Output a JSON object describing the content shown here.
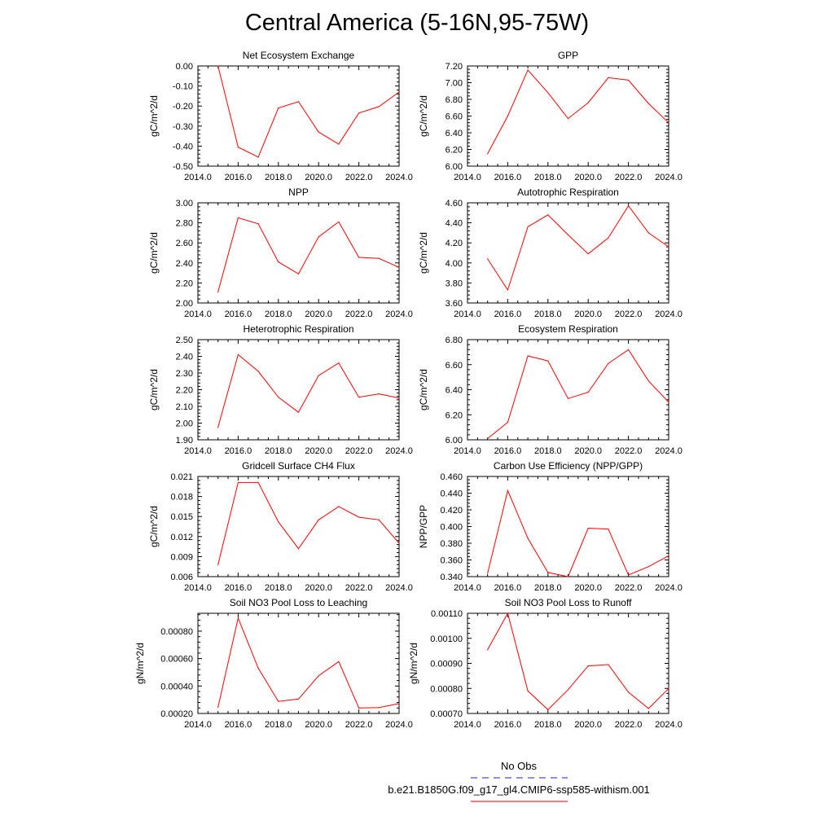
{
  "title": "Central America (5-16N,95-75W)",
  "legend": {
    "entries": [
      {
        "label": "No Obs",
        "color": "#4a4ad0",
        "dash": true
      },
      {
        "label": "b.e21.B1850G.f09_g17_gl4.CMIP6-ssp585-withism.001",
        "color": "#e8302f",
        "dash": false
      }
    ]
  },
  "colors": {
    "series": "#ff0000"
  },
  "chart_data": [
    {
      "type": "line",
      "title": "Net Ecosystem Exchange",
      "ylabel": "gC/m^2/d",
      "xlim": [
        2014,
        2024
      ],
      "ylim": [
        -0.5,
        0.0
      ],
      "xticks": [
        2014,
        2016,
        2018,
        2020,
        2022,
        2024
      ],
      "xtick_labels": [
        "2014.0",
        "2016.0",
        "2018.0",
        "2020.0",
        "2022.0",
        "2024.0"
      ],
      "yticks": [
        -0.5,
        -0.4,
        -0.3,
        -0.2,
        -0.1,
        0.0
      ],
      "ytick_labels": [
        "-0.50",
        "-0.40",
        "-0.30",
        "-0.20",
        "-0.10",
        "0.00"
      ],
      "x": [
        2015,
        2016,
        2017,
        2018,
        2019,
        2020,
        2021,
        2022,
        2023,
        2024
      ],
      "y": [
        0.0,
        -0.405,
        -0.455,
        -0.21,
        -0.178,
        -0.33,
        -0.39,
        -0.235,
        -0.203,
        -0.13
      ]
    },
    {
      "type": "line",
      "title": "GPP",
      "ylabel": "gC/m^2/d",
      "xlim": [
        2014,
        2024
      ],
      "ylim": [
        6.0,
        7.2
      ],
      "xticks": [
        2014,
        2016,
        2018,
        2020,
        2022,
        2024
      ],
      "xtick_labels": [
        "2014.0",
        "2016.0",
        "2018.0",
        "2020.0",
        "2022.0",
        "2024.0"
      ],
      "yticks": [
        6.0,
        6.2,
        6.4,
        6.6,
        6.8,
        7.0,
        7.2
      ],
      "ytick_labels": [
        "6.00",
        "6.20",
        "6.40",
        "6.60",
        "6.80",
        "7.00",
        "7.20"
      ],
      "x": [
        2015,
        2016,
        2017,
        2018,
        2019,
        2020,
        2021,
        2022,
        2023,
        2024
      ],
      "y": [
        6.15,
        6.6,
        7.15,
        6.88,
        6.57,
        6.76,
        7.06,
        7.03,
        6.75,
        6.52
      ]
    },
    {
      "type": "line",
      "title": "NPP",
      "ylabel": "gC/m^2/d",
      "xlim": [
        2014,
        2024
      ],
      "ylim": [
        2.0,
        3.0
      ],
      "xticks": [
        2014,
        2016,
        2018,
        2020,
        2022,
        2024
      ],
      "xtick_labels": [
        "2014.0",
        "2016.0",
        "2018.0",
        "2020.0",
        "2022.0",
        "2024.0"
      ],
      "yticks": [
        2.0,
        2.2,
        2.4,
        2.6,
        2.8,
        3.0
      ],
      "ytick_labels": [
        "2.00",
        "2.20",
        "2.40",
        "2.60",
        "2.80",
        "3.00"
      ],
      "x": [
        2015,
        2016,
        2017,
        2018,
        2019,
        2020,
        2021,
        2022,
        2023,
        2024
      ],
      "y": [
        2.11,
        2.85,
        2.79,
        2.41,
        2.29,
        2.66,
        2.81,
        2.455,
        2.445,
        2.355
      ]
    },
    {
      "type": "line",
      "title": "Autotrophic Respiration",
      "ylabel": "gC/m^2/d",
      "xlim": [
        2014,
        2024
      ],
      "ylim": [
        3.6,
        4.6
      ],
      "xticks": [
        2014,
        2016,
        2018,
        2020,
        2022,
        2024
      ],
      "xtick_labels": [
        "2014.0",
        "2016.0",
        "2018.0",
        "2020.0",
        "2022.0",
        "2024.0"
      ],
      "yticks": [
        3.6,
        3.8,
        4.0,
        4.2,
        4.4,
        4.6
      ],
      "ytick_labels": [
        "3.60",
        "3.80",
        "4.00",
        "4.20",
        "4.40",
        "4.60"
      ],
      "x": [
        2015,
        2016,
        2017,
        2018,
        2019,
        2020,
        2021,
        2022,
        2023,
        2024
      ],
      "y": [
        4.04,
        3.73,
        4.36,
        4.48,
        4.28,
        4.09,
        4.25,
        4.57,
        4.3,
        4.16
      ]
    },
    {
      "type": "line",
      "title": "Heterotrophic Respiration",
      "ylabel": "gC/m^2/d",
      "xlim": [
        2014,
        2024
      ],
      "ylim": [
        1.9,
        2.5
      ],
      "xticks": [
        2014,
        2016,
        2018,
        2020,
        2022,
        2024
      ],
      "xtick_labels": [
        "2014.0",
        "2016.0",
        "2018.0",
        "2020.0",
        "2022.0",
        "2024.0"
      ],
      "yticks": [
        1.9,
        2.0,
        2.1,
        2.2,
        2.3,
        2.4,
        2.5
      ],
      "ytick_labels": [
        "1.90",
        "2.00",
        "2.10",
        "2.20",
        "2.30",
        "2.40",
        "2.50"
      ],
      "x": [
        2015,
        2016,
        2017,
        2018,
        2019,
        2020,
        2021,
        2022,
        2023,
        2024
      ],
      "y": [
        1.975,
        2.41,
        2.31,
        2.155,
        2.065,
        2.285,
        2.36,
        2.155,
        2.175,
        2.15
      ]
    },
    {
      "type": "line",
      "title": "Ecosystem Respiration",
      "ylabel": "gC/m^2/d",
      "xlim": [
        2014,
        2024
      ],
      "ylim": [
        6.0,
        6.8
      ],
      "xticks": [
        2014,
        2016,
        2018,
        2020,
        2022,
        2024
      ],
      "xtick_labels": [
        "2014.0",
        "2016.0",
        "2018.0",
        "2020.0",
        "2022.0",
        "2024.0"
      ],
      "yticks": [
        6.0,
        6.2,
        6.4,
        6.6,
        6.8
      ],
      "ytick_labels": [
        "6.00",
        "6.20",
        "6.40",
        "6.60",
        "6.80"
      ],
      "x": [
        2015,
        2016,
        2017,
        2018,
        2019,
        2020,
        2021,
        2022,
        2023,
        2024
      ],
      "y": [
        6.01,
        6.14,
        6.67,
        6.63,
        6.33,
        6.38,
        6.61,
        6.72,
        6.47,
        6.3
      ]
    },
    {
      "type": "line",
      "title": "Gridcell Surface CH4 Flux",
      "ylabel": "gC/m^2/d",
      "xlim": [
        2014,
        2024
      ],
      "ylim": [
        0.006,
        0.021
      ],
      "xticks": [
        2014,
        2016,
        2018,
        2020,
        2022,
        2024
      ],
      "xtick_labels": [
        "2014.0",
        "2016.0",
        "2018.0",
        "2020.0",
        "2022.0",
        "2024.0"
      ],
      "yticks": [
        0.006,
        0.009,
        0.012,
        0.015,
        0.018,
        0.021
      ],
      "ytick_labels": [
        "0.006",
        "0.009",
        "0.012",
        "0.015",
        "0.018",
        "0.021"
      ],
      "x": [
        2015,
        2016,
        2017,
        2018,
        2019,
        2020,
        2021,
        2022,
        2023,
        2024
      ],
      "y": [
        0.0078,
        0.0201,
        0.0201,
        0.0142,
        0.0102,
        0.0145,
        0.0165,
        0.0149,
        0.0145,
        0.011
      ]
    },
    {
      "type": "line",
      "title": "Carbon Use Efficiency (NPP/GPP)",
      "ylabel": "NPP/GPP",
      "xlim": [
        2014,
        2024
      ],
      "ylim": [
        0.34,
        0.46
      ],
      "xticks": [
        2014,
        2016,
        2018,
        2020,
        2022,
        2024
      ],
      "xtick_labels": [
        "2014.0",
        "2016.0",
        "2018.0",
        "2020.0",
        "2022.0",
        "2024.0"
      ],
      "yticks": [
        0.34,
        0.36,
        0.38,
        0.4,
        0.42,
        0.44,
        0.46
      ],
      "ytick_labels": [
        "0.340",
        "0.360",
        "0.380",
        "0.400",
        "0.420",
        "0.440",
        "0.460"
      ],
      "x": [
        2015,
        2016,
        2017,
        2018,
        2019,
        2020,
        2021,
        2022,
        2023,
        2024
      ],
      "y": [
        0.344,
        0.443,
        0.386,
        0.345,
        0.34,
        0.398,
        0.397,
        0.342,
        0.352,
        0.365
      ]
    },
    {
      "type": "line",
      "title": "Soil NO3 Pool Loss to Leaching",
      "ylabel": "gN/m^2/d",
      "xlim": [
        2014,
        2024
      ],
      "ylim": [
        0.0002,
        0.00093
      ],
      "xticks": [
        2014,
        2016,
        2018,
        2020,
        2022,
        2024
      ],
      "xtick_labels": [
        "2014.0",
        "2016.0",
        "2018.0",
        "2020.0",
        "2022.0",
        "2024.0"
      ],
      "yticks": [
        0.0002,
        0.0004,
        0.0006,
        0.0008
      ],
      "ytick_labels": [
        "0.00020",
        "0.00040",
        "0.00060",
        "0.00080"
      ],
      "x": [
        2015,
        2016,
        2017,
        2018,
        2019,
        2020,
        2021,
        2022,
        2023,
        2024
      ],
      "y": [
        0.000245,
        0.000895,
        0.00053,
        0.000288,
        0.000305,
        0.000475,
        0.000578,
        0.00024,
        0.000243,
        0.000272
      ]
    },
    {
      "type": "line",
      "title": "Soil NO3 Pool Loss to Runoff",
      "ylabel": "gN/m^2/d",
      "xlim": [
        2014,
        2024
      ],
      "ylim": [
        0.0007,
        0.0011
      ],
      "xticks": [
        2014,
        2016,
        2018,
        2020,
        2022,
        2024
      ],
      "xtick_labels": [
        "2014.0",
        "2016.0",
        "2018.0",
        "2020.0",
        "2022.0",
        "2024.0"
      ],
      "yticks": [
        0.0007,
        0.0008,
        0.0009,
        0.001,
        0.0011
      ],
      "ytick_labels": [
        "0.00070",
        "0.00080",
        "0.00090",
        "0.00100",
        "0.00110"
      ],
      "x": [
        2015,
        2016,
        2017,
        2018,
        2019,
        2020,
        2021,
        2022,
        2023,
        2024
      ],
      "y": [
        0.000955,
        0.0011,
        0.00079,
        0.000715,
        0.000795,
        0.00089,
        0.000895,
        0.000785,
        0.00072,
        0.0008
      ]
    }
  ]
}
